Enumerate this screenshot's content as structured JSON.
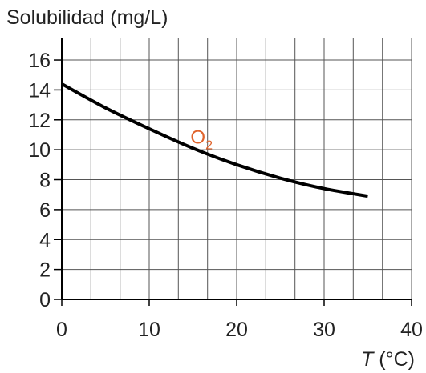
{
  "chart_data": {
    "type": "line",
    "ylabel": "Solubilidad (mg/L)",
    "xlabel_var": "T",
    "xlabel_unit": " (°C)",
    "xlim": [
      0,
      40
    ],
    "ylim": [
      0,
      17.5
    ],
    "xticks": [
      0,
      10,
      20,
      30,
      40
    ],
    "yticks": [
      0,
      2,
      4,
      6,
      8,
      10,
      12,
      14,
      16
    ],
    "x_gridlines": [
      0,
      3.33,
      6.67,
      10,
      13.33,
      16.67,
      20,
      23.33,
      26.67,
      30,
      33.33,
      36.67,
      40
    ],
    "grid": true,
    "series": [
      {
        "name": "",
        "color": "#000000",
        "x": [
          0,
          5,
          10,
          15,
          20,
          25,
          30,
          35
        ],
        "y": [
          14.4,
          12.8,
          11.4,
          10.1,
          9.0,
          8.1,
          7.4,
          6.9
        ]
      }
    ],
    "annotation": {
      "base": "O",
      "subscript": "2",
      "color": "#e0632b",
      "at": [
        16,
        10.9
      ]
    }
  }
}
